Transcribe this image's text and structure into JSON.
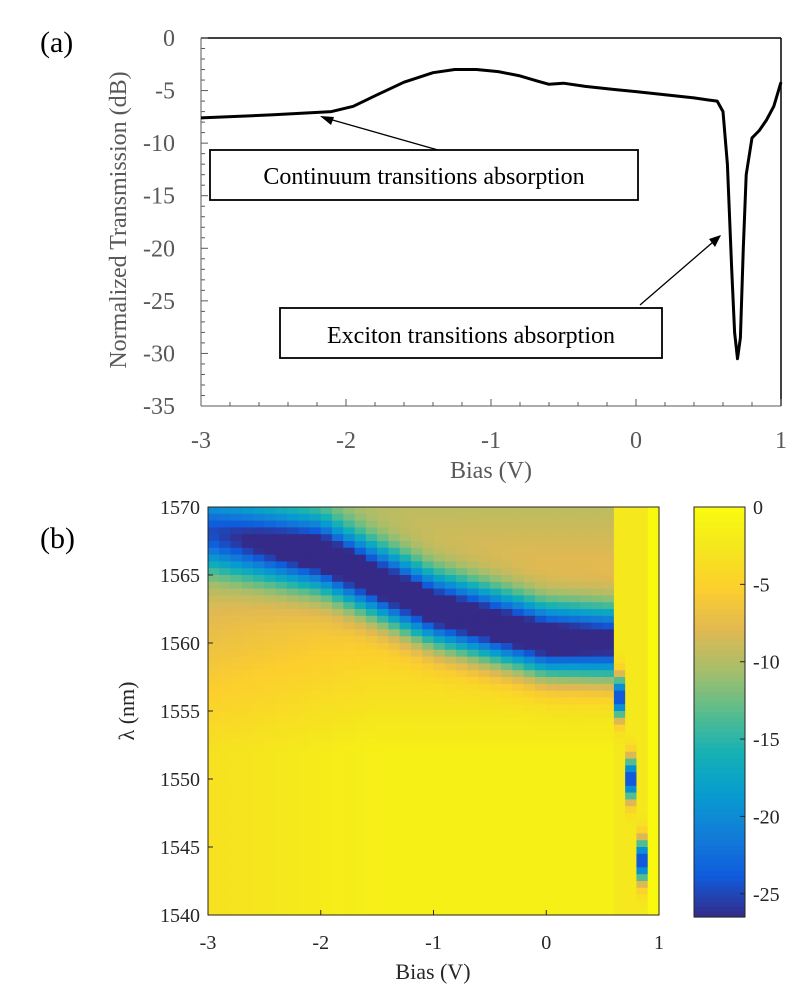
{
  "chart_data": [
    {
      "type": "line",
      "panel_label": "(a)",
      "xlabel": "Bias (V)",
      "ylabel": "Normalized Transmission (dB)",
      "xlim": [
        -3,
        1
      ],
      "ylim": [
        -35,
        0
      ],
      "xticks": [
        "-3",
        "-2",
        "-1",
        "0",
        "1"
      ],
      "yticks": [
        "0",
        "-5",
        "-10",
        "-15",
        "-20",
        "-25",
        "-30",
        "-35"
      ],
      "series": [
        {
          "x": [
            -3.0,
            -2.5,
            -2.1,
            -1.95,
            -1.8,
            -1.6,
            -1.4,
            -1.25,
            -1.1,
            -0.95,
            -0.8,
            -0.68,
            -0.6,
            -0.5,
            -0.35,
            -0.15,
            0.0,
            0.2,
            0.4,
            0.5,
            0.56,
            0.6,
            0.63,
            0.66,
            0.68,
            0.7,
            0.72,
            0.74,
            0.76,
            0.8,
            0.85,
            0.9,
            0.95,
            1.0
          ],
          "y": [
            -7.6,
            -7.3,
            -7.0,
            -6.5,
            -5.5,
            -4.2,
            -3.3,
            -3.0,
            -3.0,
            -3.2,
            -3.6,
            -4.1,
            -4.4,
            -4.3,
            -4.6,
            -4.9,
            -5.1,
            -5.4,
            -5.7,
            -5.9,
            -6.0,
            -7.0,
            -12.0,
            -22.0,
            -28.0,
            -30.5,
            -28.5,
            -20.0,
            -13.0,
            -9.5,
            -8.8,
            -7.8,
            -6.5,
            -4.2
          ]
        }
      ],
      "annotations": [
        {
          "text": "Continuum transitions absorption",
          "x": -2.15,
          "y": -7.3
        },
        {
          "text": "Exciton transitions absorption",
          "x": 0.59,
          "y": -18.5
        }
      ]
    },
    {
      "type": "heatmap",
      "panel_label": "(b)",
      "xlabel": "Bias (V)",
      "ylabel": "λ (nm)",
      "xlim": [
        -3,
        1
      ],
      "ylim": [
        1540,
        1570
      ],
      "xticks": [
        "-3",
        "-2",
        "-1",
        "0",
        "1"
      ],
      "yticks": [
        "1570",
        "1565",
        "1560",
        "1555",
        "1550",
        "1545",
        "1540"
      ],
      "colorbar": {
        "range": [
          -26.5,
          0
        ],
        "ticks": [
          "0",
          "-5",
          "-10",
          "-15",
          "-20",
          "-25"
        ]
      },
      "x_nodes": [
        -3,
        -2,
        -1,
        0,
        0.6
      ],
      "exciton_center_nm": [
        1568.0,
        1566.5,
        1562.5,
        1560.2,
        1560.0
      ],
      "exciton_depth_db": [
        -14,
        -22,
        -24,
        -25,
        -23
      ],
      "notes": "Absorption dip shifts to shorter wavelength near 0.6-1 V; region above 0.8 V is near 0 dB."
    }
  ],
  "colors": {
    "line": "#000000",
    "colormap": "parula"
  }
}
